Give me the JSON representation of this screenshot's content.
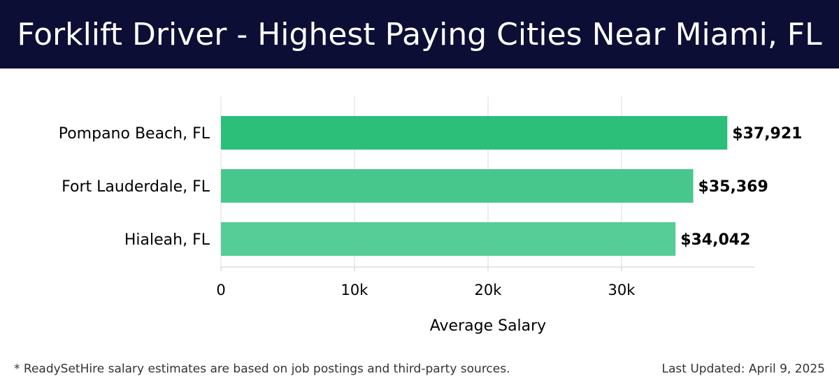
{
  "header": {
    "title": "Forklift Driver - Highest Paying Cities Near Miami, FL"
  },
  "footer": {
    "note": "* ReadySetHire salary estimates are based on job postings and third-party sources.",
    "updated": "Last Updated: April 9, 2025"
  },
  "chart_data": {
    "type": "bar",
    "orientation": "horizontal",
    "categories": [
      "Pompano Beach, FL",
      "Fort Lauderdale, FL",
      "Hialeah, FL"
    ],
    "values": [
      37921,
      35369,
      34042
    ],
    "value_labels": [
      "$37,921",
      "$35,369",
      "$34,042"
    ],
    "xlabel": "Average Salary",
    "ylabel": "",
    "xlim": [
      0,
      40000
    ],
    "xticks": [
      0,
      10000,
      20000,
      30000
    ],
    "xtick_labels": [
      "0",
      "10k",
      "20k",
      "30k"
    ],
    "grid": true,
    "colors": [
      "#2bbf7a",
      "#48c78d",
      "#56cc97"
    ]
  }
}
